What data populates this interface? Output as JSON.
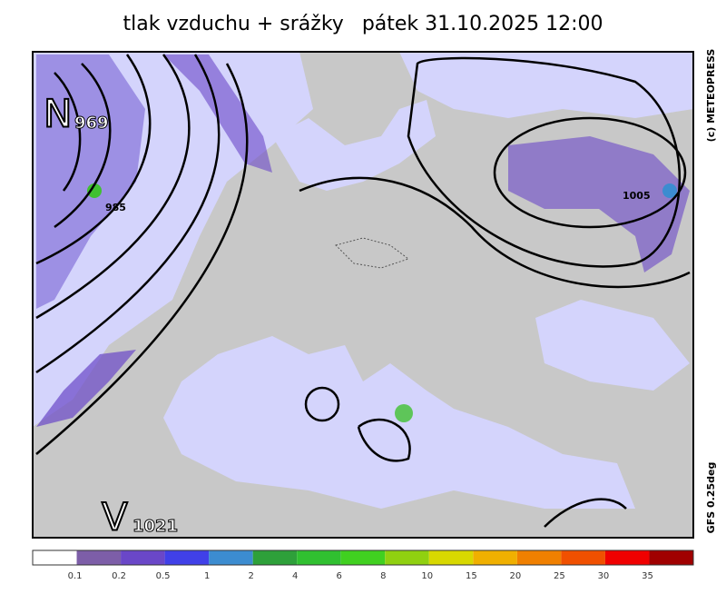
{
  "header": {
    "title": "tlak vzduchu + srážky",
    "datetime": "pátek 31.10.2025 12:00"
  },
  "map": {
    "pressure_centers": [
      {
        "letter": "N",
        "value": 969
      },
      {
        "letter": "V",
        "value": 1021
      }
    ],
    "isobar_labels": [
      985,
      1005
    ],
    "credit": "(c) METEOPRESS",
    "model": "GFS 0.25deg"
  },
  "legend": {
    "colors": [
      "#ffffff",
      "#7d5ea8",
      "#6a47c8",
      "#4040e8",
      "#3c8cd0",
      "#2ea03a",
      "#30c030",
      "#40d020",
      "#90d010",
      "#d8d800",
      "#f0b000",
      "#f08000",
      "#f05000",
      "#f00000",
      "#a00000"
    ],
    "labels": [
      0.1,
      0.2,
      0.5,
      1,
      2,
      4,
      6,
      8,
      10,
      15,
      20,
      25,
      30,
      35
    ]
  }
}
